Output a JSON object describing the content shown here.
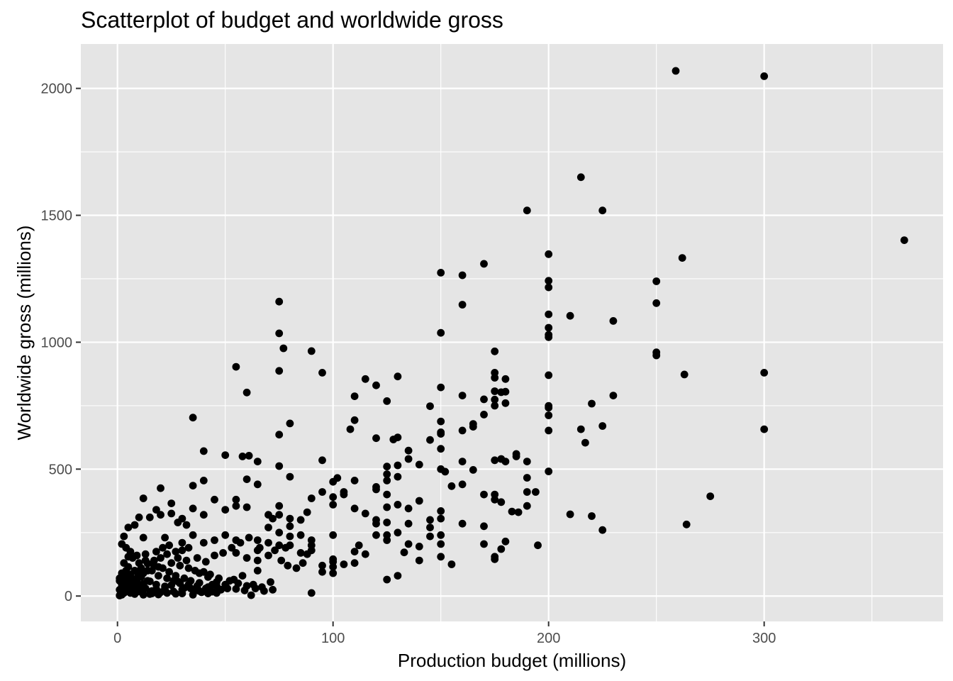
{
  "chart_data": {
    "type": "scatter",
    "title": "Scatterplot of budget and worldwide gross",
    "xlabel": "Production budget (millions)",
    "ylabel": "Worldwide gross (millions)",
    "xlim": [
      -17,
      383
    ],
    "ylim": [
      -100,
      2175
    ],
    "x_ticks": [
      0,
      100,
      200,
      300
    ],
    "x_tick_labels": [
      "0",
      "100",
      "200",
      "300"
    ],
    "y_ticks": [
      0,
      500,
      1000,
      1500,
      2000
    ],
    "y_tick_labels": [
      "0",
      "500",
      "1000",
      "1500",
      "2000"
    ],
    "grid": true,
    "panel_background": "#e5e5e5",
    "point_color": "#000000",
    "points": [
      [
        259,
        2069
      ],
      [
        300,
        2048
      ],
      [
        215,
        1650
      ],
      [
        190,
        1519
      ],
      [
        225,
        1519
      ],
      [
        365,
        1402
      ],
      [
        200,
        1347
      ],
      [
        262,
        1332
      ],
      [
        150,
        1274
      ],
      [
        160,
        1264
      ],
      [
        170,
        1309
      ],
      [
        200,
        1242
      ],
      [
        250,
        1240
      ],
      [
        200,
        1216
      ],
      [
        250,
        1154
      ],
      [
        160,
        1148
      ],
      [
        75,
        1160
      ],
      [
        200,
        1110
      ],
      [
        210,
        1104
      ],
      [
        230,
        1084
      ],
      [
        200,
        1057
      ],
      [
        150,
        1037
      ],
      [
        200,
        1029
      ],
      [
        200,
        1020
      ],
      [
        75,
        1035
      ],
      [
        77,
        976
      ],
      [
        90,
        965
      ],
      [
        175,
        964
      ],
      [
        250,
        960
      ],
      [
        250,
        948
      ],
      [
        263,
        873
      ],
      [
        300,
        880
      ],
      [
        175,
        880
      ],
      [
        95,
        880
      ],
      [
        75,
        887
      ],
      [
        55,
        903
      ],
      [
        200,
        870
      ],
      [
        175,
        860
      ],
      [
        180,
        855
      ],
      [
        115,
        855
      ],
      [
        120,
        830
      ],
      [
        130,
        865
      ],
      [
        150,
        822
      ],
      [
        60,
        802
      ],
      [
        175,
        807
      ],
      [
        178,
        803
      ],
      [
        180,
        805
      ],
      [
        110,
        787
      ],
      [
        160,
        790
      ],
      [
        230,
        790
      ],
      [
        175,
        774
      ],
      [
        170,
        775
      ],
      [
        125,
        768
      ],
      [
        145,
        748
      ],
      [
        200,
        749
      ],
      [
        200,
        742
      ],
      [
        220,
        758
      ],
      [
        180,
        760
      ],
      [
        175,
        750
      ],
      [
        170,
        715
      ],
      [
        200,
        712
      ],
      [
        35,
        703
      ],
      [
        110,
        693
      ],
      [
        150,
        688
      ],
      [
        165,
        678
      ],
      [
        165,
        667
      ],
      [
        160,
        652
      ],
      [
        150,
        645
      ],
      [
        150,
        639
      ],
      [
        108,
        657
      ],
      [
        225,
        670
      ],
      [
        215,
        657
      ],
      [
        300,
        657
      ],
      [
        200,
        652
      ],
      [
        80,
        680
      ],
      [
        75,
        636
      ],
      [
        145,
        615
      ],
      [
        120,
        622
      ],
      [
        128,
        617
      ],
      [
        130,
        625
      ],
      [
        217,
        604
      ],
      [
        40,
        571
      ],
      [
        135,
        573
      ],
      [
        150,
        580
      ],
      [
        160,
        530
      ],
      [
        185,
        560
      ],
      [
        185,
        550
      ],
      [
        175,
        535
      ],
      [
        178,
        540
      ],
      [
        180,
        530
      ],
      [
        190,
        530
      ],
      [
        58,
        550
      ],
      [
        61,
        553
      ],
      [
        65,
        530
      ],
      [
        95,
        535
      ],
      [
        125,
        510
      ],
      [
        130,
        515
      ],
      [
        135,
        540
      ],
      [
        140,
        518
      ],
      [
        150,
        500
      ],
      [
        152,
        490
      ],
      [
        155,
        433
      ],
      [
        165,
        497
      ],
      [
        200,
        491
      ],
      [
        75,
        512
      ],
      [
        60,
        460
      ],
      [
        35,
        435
      ],
      [
        40,
        455
      ],
      [
        80,
        470
      ],
      [
        100,
        450
      ],
      [
        102,
        465
      ],
      [
        110,
        455
      ],
      [
        105,
        410
      ],
      [
        100,
        390
      ],
      [
        120,
        420
      ],
      [
        120,
        430
      ],
      [
        125,
        480
      ],
      [
        125,
        455
      ],
      [
        130,
        470
      ],
      [
        175,
        380
      ],
      [
        178,
        370
      ],
      [
        183,
        333
      ],
      [
        186,
        330
      ],
      [
        190,
        410
      ],
      [
        190,
        466
      ],
      [
        194,
        410
      ],
      [
        190,
        355
      ],
      [
        175,
        400
      ],
      [
        170,
        400
      ],
      [
        160,
        440
      ],
      [
        150,
        335
      ],
      [
        150,
        305
      ],
      [
        145,
        300
      ],
      [
        140,
        375
      ],
      [
        135,
        345
      ],
      [
        130,
        360
      ],
      [
        125,
        400
      ],
      [
        125,
        350
      ],
      [
        120,
        285
      ],
      [
        115,
        325
      ],
      [
        110,
        345
      ],
      [
        105,
        400
      ],
      [
        100,
        360
      ],
      [
        95,
        410
      ],
      [
        90,
        385
      ],
      [
        88,
        330
      ],
      [
        85,
        300
      ],
      [
        80,
        305
      ],
      [
        75,
        355
      ],
      [
        75,
        320
      ],
      [
        70,
        320
      ],
      [
        70,
        270
      ],
      [
        65,
        440
      ],
      [
        60,
        350
      ],
      [
        55,
        380
      ],
      [
        55,
        355
      ],
      [
        50,
        555
      ],
      [
        50,
        340
      ],
      [
        45,
        380
      ],
      [
        40,
        320
      ],
      [
        35,
        345
      ],
      [
        25,
        365
      ],
      [
        20,
        425
      ],
      [
        12,
        385
      ],
      [
        10,
        310
      ],
      [
        15,
        310
      ],
      [
        25,
        325
      ],
      [
        30,
        305
      ],
      [
        12,
        230
      ],
      [
        8,
        280
      ],
      [
        5,
        270
      ],
      [
        3,
        235
      ],
      [
        20,
        320
      ],
      [
        22,
        230
      ],
      [
        18,
        340
      ],
      [
        210,
        322
      ],
      [
        220,
        315
      ],
      [
        225,
        260
      ],
      [
        195,
        200
      ],
      [
        275,
        393
      ],
      [
        264,
        282
      ],
      [
        180,
        215
      ],
      [
        178,
        185
      ],
      [
        175,
        145
      ],
      [
        175,
        155
      ],
      [
        170,
        275
      ],
      [
        170,
        205
      ],
      [
        160,
        285
      ],
      [
        155,
        125
      ],
      [
        150,
        155
      ],
      [
        150,
        205
      ],
      [
        150,
        240
      ],
      [
        145,
        270
      ],
      [
        145,
        235
      ],
      [
        140,
        195
      ],
      [
        140,
        140
      ],
      [
        135,
        285
      ],
      [
        135,
        205
      ],
      [
        133,
        172
      ],
      [
        130,
        250
      ],
      [
        130,
        80
      ],
      [
        125,
        220
      ],
      [
        125,
        240
      ],
      [
        125,
        290
      ],
      [
        125,
        65
      ],
      [
        120,
        300
      ],
      [
        120,
        240
      ],
      [
        115,
        165
      ],
      [
        112,
        200
      ],
      [
        110,
        175
      ],
      [
        110,
        130
      ],
      [
        105,
        125
      ],
      [
        100,
        135
      ],
      [
        100,
        145
      ],
      [
        100,
        240
      ],
      [
        100,
        90
      ],
      [
        100,
        115
      ],
      [
        95,
        120
      ],
      [
        95,
        95
      ],
      [
        90,
        200
      ],
      [
        90,
        180
      ],
      [
        90,
        220
      ],
      [
        90,
        12
      ],
      [
        88,
        165
      ],
      [
        85,
        240
      ],
      [
        85,
        170
      ],
      [
        80,
        275
      ],
      [
        80,
        235
      ],
      [
        80,
        200
      ],
      [
        78,
        190
      ],
      [
        75,
        250
      ],
      [
        75,
        200
      ],
      [
        72,
        305
      ],
      [
        70,
        210
      ],
      [
        65,
        220
      ],
      [
        65,
        180
      ],
      [
        65,
        140
      ],
      [
        65,
        100
      ],
      [
        60,
        150
      ],
      [
        55,
        220
      ],
      [
        55,
        170
      ],
      [
        50,
        240
      ],
      [
        45,
        220
      ],
      [
        40,
        210
      ],
      [
        35,
        240
      ],
      [
        32,
        280
      ],
      [
        28,
        290
      ],
      [
        30,
        210
      ],
      [
        62,
        3
      ],
      [
        48,
        25
      ],
      [
        44,
        17
      ],
      [
        38,
        52
      ],
      [
        36,
        21
      ],
      [
        31,
        32
      ],
      [
        28,
        57
      ],
      [
        25,
        43
      ],
      [
        22,
        38
      ],
      [
        18,
        27
      ],
      [
        15,
        58
      ],
      [
        12,
        48
      ],
      [
        10,
        32
      ],
      [
        8,
        42
      ],
      [
        5,
        22
      ],
      [
        3,
        12
      ],
      [
        2,
        5
      ],
      [
        1,
        2
      ],
      [
        4,
        62
      ],
      [
        6,
        80
      ],
      [
        9,
        95
      ],
      [
        11,
        110
      ],
      [
        14,
        128
      ],
      [
        17,
        140
      ],
      [
        20,
        150
      ],
      [
        23,
        165
      ],
      [
        27,
        175
      ],
      [
        30,
        180
      ],
      [
        33,
        190
      ],
      [
        37,
        150
      ],
      [
        41,
        135
      ],
      [
        45,
        160
      ],
      [
        49,
        170
      ],
      [
        53,
        190
      ],
      [
        57,
        210
      ],
      [
        61,
        230
      ],
      [
        66,
        190
      ],
      [
        70,
        160
      ],
      [
        73,
        180
      ],
      [
        76,
        140
      ],
      [
        79,
        120
      ],
      [
        83,
        110
      ],
      [
        86,
        130
      ],
      [
        30,
        10
      ],
      [
        20,
        15
      ],
      [
        15,
        8
      ],
      [
        10,
        18
      ],
      [
        7,
        25
      ],
      [
        4,
        35
      ],
      [
        2,
        45
      ],
      [
        1,
        60
      ],
      [
        3,
        75
      ],
      [
        6,
        85
      ],
      [
        9,
        70
      ],
      [
        12,
        90
      ],
      [
        16,
        100
      ],
      [
        19,
        115
      ],
      [
        24,
        95
      ],
      [
        27,
        80
      ],
      [
        31,
        70
      ],
      [
        34,
        60
      ],
      [
        38,
        90
      ],
      [
        42,
        75
      ],
      [
        46,
        55
      ],
      [
        50,
        45
      ],
      [
        54,
        65
      ],
      [
        58,
        80
      ],
      [
        63,
        45
      ],
      [
        67,
        35
      ],
      [
        71,
        55
      ],
      [
        26,
        18
      ],
      [
        22,
        30
      ],
      [
        18,
        45
      ],
      [
        14,
        60
      ],
      [
        11,
        75
      ],
      [
        8,
        100
      ],
      [
        5,
        115
      ],
      [
        3,
        130
      ],
      [
        7,
        150
      ],
      [
        13,
        165
      ],
      [
        18,
        175
      ],
      [
        21,
        190
      ],
      [
        24,
        200
      ],
      [
        29,
        120
      ],
      [
        33,
        110
      ],
      [
        36,
        100
      ],
      [
        40,
        95
      ],
      [
        43,
        85
      ],
      [
        47,
        70
      ],
      [
        52,
        60
      ],
      [
        56,
        50
      ],
      [
        60,
        40
      ],
      [
        64,
        30
      ],
      [
        68,
        20
      ],
      [
        72,
        25
      ],
      [
        35,
        5
      ],
      [
        39,
        15
      ],
      [
        42,
        35
      ],
      [
        46,
        40
      ],
      [
        51,
        30
      ],
      [
        55,
        28
      ],
      [
        59,
        22
      ],
      [
        32,
        140
      ],
      [
        28,
        150
      ],
      [
        25,
        130
      ],
      [
        21,
        110
      ],
      [
        17,
        120
      ],
      [
        13,
        140
      ],
      [
        9,
        160
      ],
      [
        6,
        175
      ],
      [
        4,
        190
      ],
      [
        2,
        205
      ],
      [
        5,
        155
      ],
      [
        10,
        130
      ],
      [
        14,
        100
      ],
      [
        19,
        80
      ],
      [
        23,
        70
      ],
      [
        26,
        60
      ],
      [
        29,
        50
      ],
      [
        33,
        45
      ],
      [
        37,
        40
      ],
      [
        41,
        30
      ],
      [
        44,
        45
      ],
      [
        16,
        20
      ],
      [
        13,
        30
      ],
      [
        11,
        40
      ],
      [
        9,
        55
      ],
      [
        7,
        65
      ],
      [
        5,
        45
      ],
      [
        3,
        55
      ],
      [
        1,
        70
      ],
      [
        2,
        90
      ],
      [
        4,
        100
      ],
      [
        1,
        25
      ],
      [
        2,
        15
      ],
      [
        6,
        12
      ],
      [
        8,
        8
      ],
      [
        12,
        5
      ],
      [
        16,
        10
      ],
      [
        19,
        6
      ],
      [
        23,
        12
      ],
      [
        27,
        9
      ],
      [
        30,
        25
      ],
      [
        34,
        30
      ],
      [
        38,
        20
      ],
      [
        42,
        10
      ],
      [
        46,
        12
      ]
    ]
  }
}
